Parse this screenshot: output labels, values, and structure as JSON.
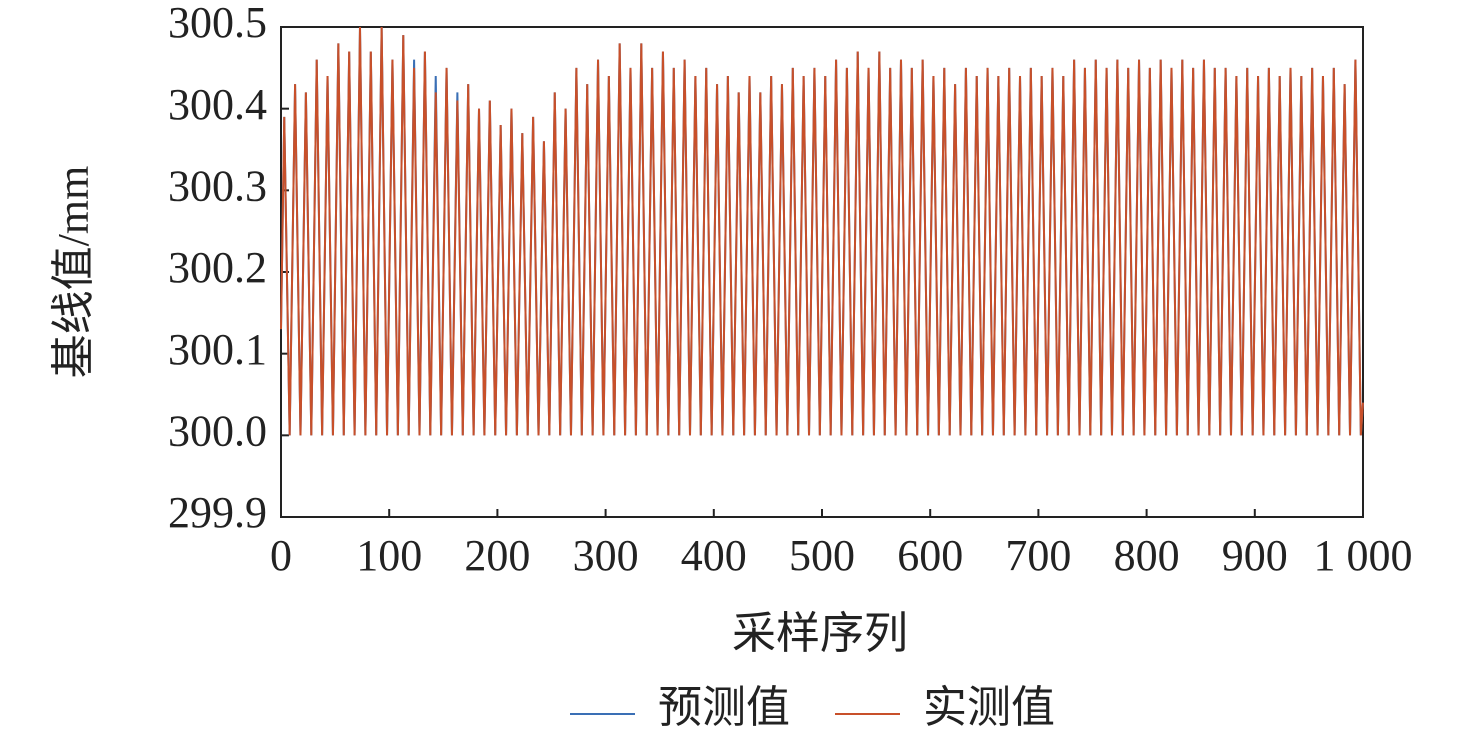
{
  "chart_data": {
    "type": "line",
    "x_label": "采样序列",
    "y_label": "基线值/mm",
    "x": [
      0,
      3,
      8,
      13,
      18,
      23,
      28,
      33,
      38,
      43,
      48,
      53,
      58,
      63,
      68,
      73,
      78,
      83,
      88,
      93,
      98,
      103,
      108,
      113,
      118,
      123,
      128,
      133,
      138,
      143,
      148,
      153,
      158,
      163,
      168,
      173,
      178,
      183,
      188,
      193,
      198,
      203,
      208,
      213,
      218,
      223,
      228,
      233,
      238,
      243,
      248,
      253,
      258,
      263,
      268,
      273,
      278,
      283,
      288,
      293,
      298,
      303,
      308,
      313,
      318,
      323,
      328,
      333,
      338,
      343,
      348,
      353,
      358,
      363,
      368,
      373,
      378,
      383,
      388,
      393,
      398,
      403,
      408,
      413,
      418,
      423,
      428,
      433,
      438,
      443,
      448,
      453,
      458,
      463,
      468,
      473,
      478,
      483,
      488,
      493,
      498,
      503,
      508,
      513,
      518,
      523,
      528,
      533,
      538,
      543,
      548,
      553,
      558,
      563,
      568,
      573,
      578,
      583,
      588,
      593,
      598,
      603,
      608,
      613,
      618,
      623,
      628,
      633,
      638,
      643,
      648,
      653,
      658,
      663,
      668,
      673,
      678,
      683,
      688,
      693,
      698,
      703,
      708,
      713,
      718,
      723,
      728,
      733,
      738,
      743,
      748,
      753,
      758,
      763,
      768,
      773,
      778,
      783,
      788,
      793,
      798,
      803,
      808,
      813,
      818,
      823,
      828,
      833,
      838,
      843,
      848,
      853,
      858,
      863,
      868,
      873,
      878,
      883,
      888,
      893,
      898,
      903,
      908,
      913,
      918,
      923,
      928,
      933,
      938,
      943,
      948,
      953,
      958,
      963,
      968,
      973,
      978,
      983,
      988,
      993,
      998,
      1000
    ],
    "series": [
      {
        "name": "预测值",
        "color": "#3a6fb5",
        "values": [
          300.13,
          300.39,
          300,
          300.43,
          300,
          300.42,
          300,
          300.46,
          300,
          300.44,
          300,
          300.48,
          300,
          300.47,
          300,
          300.5,
          300,
          300.47,
          300,
          300.5,
          300,
          300.46,
          300,
          300.49,
          300,
          300.46,
          300,
          300.47,
          300,
          300.44,
          300,
          300.45,
          300,
          300.42,
          300,
          300.43,
          300,
          300.4,
          300,
          300.41,
          300,
          300.38,
          300,
          300.4,
          300,
          300.37,
          300,
          300.39,
          300,
          300.36,
          300,
          300.42,
          300,
          300.4,
          300,
          300.45,
          300,
          300.43,
          300,
          300.46,
          300,
          300.44,
          300,
          300.48,
          300,
          300.45,
          300,
          300.48,
          300,
          300.45,
          300,
          300.47,
          300,
          300.45,
          300,
          300.46,
          300,
          300.44,
          300,
          300.45,
          300,
          300.43,
          300,
          300.44,
          300,
          300.42,
          300,
          300.44,
          300,
          300.42,
          300,
          300.44,
          300,
          300.43,
          300,
          300.45,
          300,
          300.44,
          300,
          300.45,
          300,
          300.44,
          300,
          300.46,
          300,
          300.45,
          300,
          300.47,
          300,
          300.45,
          300,
          300.47,
          300,
          300.45,
          300,
          300.46,
          300,
          300.45,
          300,
          300.46,
          300,
          300.44,
          300,
          300.45,
          300,
          300.43,
          300,
          300.45,
          300,
          300.44,
          300,
          300.45,
          300,
          300.44,
          300,
          300.45,
          300,
          300.44,
          300,
          300.45,
          300,
          300.44,
          300,
          300.45,
          300,
          300.44,
          300,
          300.46,
          300,
          300.45,
          300,
          300.46,
          300,
          300.45,
          300,
          300.46,
          300,
          300.45,
          300,
          300.46,
          300,
          300.45,
          300,
          300.46,
          300,
          300.45,
          300,
          300.46,
          300,
          300.45,
          300,
          300.46,
          300,
          300.45,
          300,
          300.45,
          300,
          300.44,
          300,
          300.45,
          300,
          300.44,
          300,
          300.45,
          300,
          300.44,
          300,
          300.45,
          300,
          300.44,
          300,
          300.45,
          300,
          300.44,
          300,
          300.45,
          300,
          300.43,
          300,
          300.46,
          300,
          300.04
        ]
      },
      {
        "name": "实测值",
        "color": "#c8502a",
        "values": [
          300.13,
          300.39,
          300,
          300.43,
          300,
          300.42,
          300,
          300.46,
          300,
          300.44,
          300,
          300.48,
          300,
          300.47,
          300,
          300.5,
          300,
          300.47,
          300,
          300.5,
          300,
          300.46,
          300,
          300.49,
          300,
          300.45,
          300,
          300.47,
          300,
          300.42,
          300,
          300.45,
          300,
          300.41,
          300,
          300.43,
          300,
          300.4,
          300,
          300.41,
          300,
          300.38,
          300,
          300.4,
          300,
          300.37,
          300,
          300.39,
          300,
          300.36,
          300,
          300.42,
          300,
          300.4,
          300,
          300.45,
          300,
          300.43,
          300,
          300.46,
          300,
          300.44,
          300,
          300.48,
          300,
          300.45,
          300,
          300.48,
          300,
          300.45,
          300,
          300.47,
          300,
          300.45,
          300,
          300.46,
          300,
          300.44,
          300,
          300.45,
          300,
          300.43,
          300,
          300.44,
          300,
          300.42,
          300,
          300.44,
          300,
          300.42,
          300,
          300.44,
          300,
          300.43,
          300,
          300.45,
          300,
          300.44,
          300,
          300.45,
          300,
          300.44,
          300,
          300.46,
          300,
          300.45,
          300,
          300.47,
          300,
          300.45,
          300,
          300.47,
          300,
          300.45,
          300,
          300.46,
          300,
          300.45,
          300,
          300.46,
          300,
          300.44,
          300,
          300.45,
          300,
          300.43,
          300,
          300.45,
          300,
          300.44,
          300,
          300.45,
          300,
          300.44,
          300,
          300.45,
          300,
          300.44,
          300,
          300.45,
          300,
          300.44,
          300,
          300.45,
          300,
          300.44,
          300,
          300.46,
          300,
          300.45,
          300,
          300.46,
          300,
          300.45,
          300,
          300.46,
          300,
          300.45,
          300,
          300.46,
          300,
          300.45,
          300,
          300.46,
          300,
          300.45,
          300,
          300.46,
          300,
          300.45,
          300,
          300.46,
          300,
          300.45,
          300,
          300.45,
          300,
          300.44,
          300,
          300.45,
          300,
          300.44,
          300,
          300.45,
          300,
          300.44,
          300,
          300.45,
          300,
          300.44,
          300,
          300.45,
          300,
          300.44,
          300,
          300.45,
          300,
          300.43,
          300,
          300.46,
          300,
          300.04
        ]
      }
    ],
    "xlim": [
      0,
      1000
    ],
    "xticks": [
      0,
      100,
      200,
      300,
      400,
      500,
      600,
      700,
      800,
      900,
      {
        "value": 1000,
        "label": "1 000"
      }
    ],
    "ylim": [
      299.9,
      300.5
    ],
    "yticks": [
      299.9,
      {
        "value": 300,
        "label": "300.0"
      },
      300.1,
      300.2,
      300.3,
      300.4,
      300.5
    ],
    "grid": false,
    "legend": "bottom"
  }
}
